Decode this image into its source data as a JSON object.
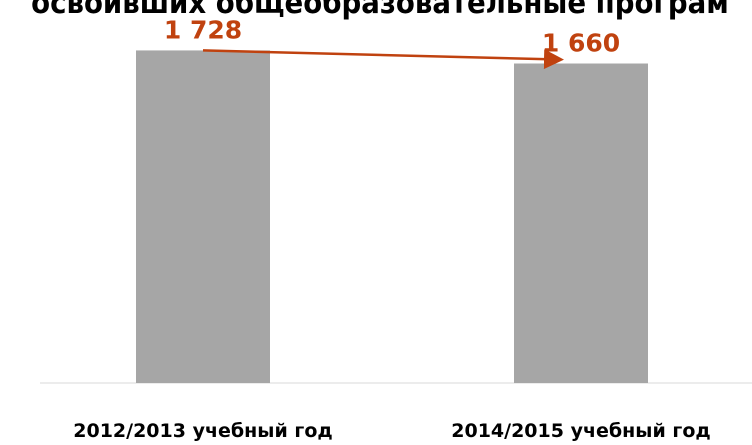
{
  "chart_data": {
    "type": "bar",
    "title": "освоивших общеобразовательные програм",
    "categories": [
      "2012/2013 учебный год",
      "2014/2015 учебный год"
    ],
    "values": [
      1728,
      1660
    ],
    "value_labels": [
      "1 728",
      "1 660"
    ],
    "bar_color": "#a6a6a6",
    "label_color": "#c0420f",
    "arrow_color": "#c0420f",
    "ylim": [
      0,
      1990
    ],
    "grid": false,
    "legend": "none"
  }
}
